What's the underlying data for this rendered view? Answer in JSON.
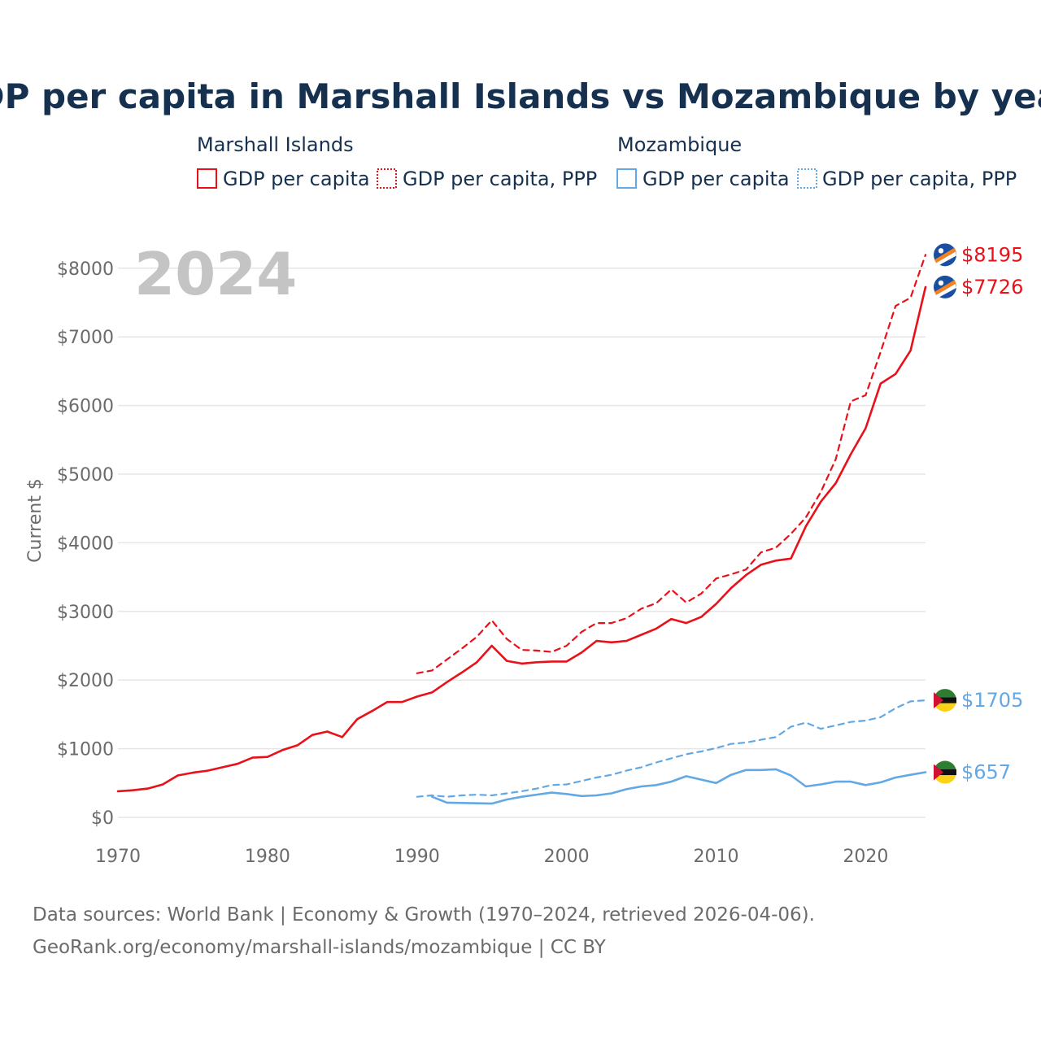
{
  "colors": {
    "marshall": "#e8111a",
    "mozambique": "#62a8e5",
    "title": "#16304f",
    "muted": "#6b6b6b",
    "year_watermark": "#c4c4c4"
  },
  "chart_data": {
    "type": "line",
    "title": "GDP per capita in Marshall Islands vs Mozambique by year",
    "year_display": "2024",
    "ylabel": "Current $",
    "xlabel": "",
    "xlim": [
      1970,
      2024
    ],
    "ylim": [
      0,
      8200
    ],
    "x_ticks": [
      {
        "value": 1970,
        "label": "1970"
      },
      {
        "value": 1980,
        "label": "1980"
      },
      {
        "value": 1990,
        "label": "1990"
      },
      {
        "value": 2000,
        "label": "2000"
      },
      {
        "value": 2010,
        "label": "2010"
      },
      {
        "value": 2020,
        "label": "2020"
      }
    ],
    "y_ticks": [
      {
        "value": 0,
        "label": "$0"
      },
      {
        "value": 1000,
        "label": "$1000"
      },
      {
        "value": 2000,
        "label": "$2000"
      },
      {
        "value": 3000,
        "label": "$3000"
      },
      {
        "value": 4000,
        "label": "$4000"
      },
      {
        "value": 5000,
        "label": "$5000"
      },
      {
        "value": 6000,
        "label": "$6000"
      },
      {
        "value": 7000,
        "label": "$7000"
      },
      {
        "value": 8000,
        "label": "$8000"
      }
    ],
    "legend": {
      "placement": "top",
      "groups": [
        {
          "country": "Marshall Islands",
          "items": [
            "GDP per capita",
            "GDP per capita, PPP"
          ]
        },
        {
          "country": "Mozambique",
          "items": [
            "GDP per capita",
            "GDP per capita, PPP"
          ]
        }
      ]
    },
    "series": [
      {
        "id": "mh-gdp",
        "name": "Marshall Islands GDP per capita",
        "country": "Marshall Islands",
        "style": "solid",
        "color_key": "marshall",
        "end_label": "$7726",
        "x": [
          1970,
          1971,
          1972,
          1973,
          1974,
          1975,
          1976,
          1977,
          1978,
          1979,
          1980,
          1981,
          1982,
          1983,
          1984,
          1985,
          1986,
          1987,
          1988,
          1989,
          1990,
          1991,
          1992,
          1993,
          1994,
          1995,
          1996,
          1997,
          1998,
          1999,
          2000,
          2001,
          2002,
          2003,
          2004,
          2005,
          2006,
          2007,
          2008,
          2009,
          2010,
          2011,
          2012,
          2013,
          2014,
          2015,
          2016,
          2017,
          2018,
          2019,
          2020,
          2021,
          2022,
          2023,
          2024
        ],
        "values": [
          380,
          395,
          420,
          480,
          610,
          650,
          680,
          730,
          780,
          870,
          880,
          980,
          1050,
          1200,
          1250,
          1170,
          1430,
          1550,
          1680,
          1680,
          1760,
          1820,
          1970,
          2110,
          2260,
          2500,
          2280,
          2240,
          2260,
          2270,
          2270,
          2400,
          2570,
          2550,
          2570,
          2660,
          2750,
          2890,
          2830,
          2920,
          3110,
          3340,
          3530,
          3680,
          3740,
          3770,
          4240,
          4600,
          4870,
          5290,
          5670,
          6320,
          6460,
          6800,
          7726
        ]
      },
      {
        "id": "mh-ppp",
        "name": "Marshall Islands GDP per capita, PPP",
        "country": "Marshall Islands",
        "style": "dashed",
        "color_key": "marshall",
        "end_label": "$8195",
        "x": [
          1990,
          1991,
          1992,
          1993,
          1994,
          1995,
          1996,
          1997,
          1998,
          1999,
          2000,
          2001,
          2002,
          2003,
          2004,
          2005,
          2006,
          2007,
          2008,
          2009,
          2010,
          2011,
          2012,
          2013,
          2014,
          2015,
          2016,
          2017,
          2018,
          2019,
          2020,
          2021,
          2022,
          2023,
          2024
        ],
        "values": [
          2100,
          2140,
          2300,
          2460,
          2630,
          2870,
          2600,
          2440,
          2430,
          2410,
          2500,
          2700,
          2830,
          2830,
          2900,
          3040,
          3120,
          3320,
          3130,
          3260,
          3480,
          3540,
          3610,
          3860,
          3930,
          4130,
          4370,
          4740,
          5220,
          6060,
          6150,
          6780,
          7450,
          7570,
          8195
        ]
      },
      {
        "id": "mz-gdp",
        "name": "Mozambique GDP per capita",
        "country": "Mozambique",
        "style": "solid",
        "color_key": "mozambique",
        "end_label": "$657",
        "x": [
          1991,
          1992,
          1993,
          1994,
          1995,
          1996,
          1997,
          1998,
          1999,
          2000,
          2001,
          2002,
          2003,
          2004,
          2005,
          2006,
          2007,
          2008,
          2009,
          2010,
          2011,
          2012,
          2013,
          2014,
          2015,
          2016,
          2017,
          2018,
          2019,
          2020,
          2021,
          2022,
          2023,
          2024
        ],
        "values": [
          300,
          215,
          210,
          205,
          200,
          260,
          300,
          330,
          360,
          340,
          310,
          320,
          350,
          410,
          450,
          470,
          520,
          600,
          550,
          500,
          620,
          690,
          690,
          700,
          610,
          450,
          480,
          520,
          520,
          470,
          510,
          580,
          620,
          657
        ]
      },
      {
        "id": "mz-ppp",
        "name": "Mozambique GDP per capita, PPP",
        "country": "Mozambique",
        "style": "dashed",
        "color_key": "mozambique",
        "end_label": "$1705",
        "x": [
          1990,
          1991,
          1992,
          1993,
          1994,
          1995,
          1996,
          1997,
          1998,
          1999,
          2000,
          2001,
          2002,
          2003,
          2004,
          2005,
          2006,
          2007,
          2008,
          2009,
          2010,
          2011,
          2012,
          2013,
          2014,
          2015,
          2016,
          2017,
          2018,
          2019,
          2020,
          2021,
          2022,
          2023,
          2024
        ],
        "values": [
          300,
          320,
          300,
          320,
          330,
          320,
          350,
          380,
          420,
          470,
          480,
          530,
          580,
          620,
          680,
          730,
          800,
          860,
          920,
          960,
          1010,
          1070,
          1090,
          1130,
          1170,
          1320,
          1380,
          1290,
          1340,
          1390,
          1410,
          1460,
          1590,
          1690,
          1705
        ]
      }
    ]
  },
  "footer": {
    "sources": "Data sources: World Bank | Economy & Growth (1970–2024, retrieved 2026-04-06).",
    "credit": "GeoRank.org/economy/marshall-islands/mozambique | CC BY"
  }
}
